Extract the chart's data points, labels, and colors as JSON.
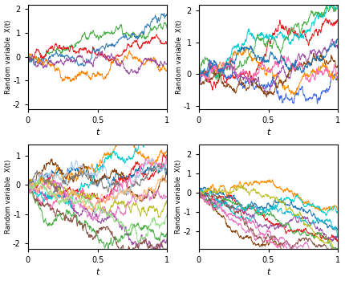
{
  "n_steps": 500,
  "subplots": [
    {
      "n_paths": 5,
      "seed": 1,
      "drift": 0.0,
      "ylim": [
        -2.2,
        2.2
      ],
      "yticks": [
        -2,
        -1,
        0,
        1,
        2
      ]
    },
    {
      "n_paths": 9,
      "seed": 3,
      "drift": 1.5,
      "ylim": [
        -1.1,
        2.2
      ],
      "yticks": [
        -1,
        0,
        1,
        2
      ]
    },
    {
      "n_paths": 15,
      "seed": 5,
      "drift": 0.0,
      "ylim": [
        -2.2,
        1.4
      ],
      "yticks": [
        -2,
        -1,
        0,
        1
      ]
    },
    {
      "n_paths": 12,
      "seed": 8,
      "drift": -2.5,
      "ylim": [
        -2.9,
        2.5
      ],
      "yticks": [
        -2,
        -1,
        0,
        1,
        2
      ]
    }
  ],
  "colors_per_subplot": [
    [
      "#4daf4a",
      "#e41a1c",
      "#377eb8",
      "#ff7f00",
      "#984ea3"
    ],
    [
      "#e41a1c",
      "#00ced1",
      "#4169e1",
      "#ff8c00",
      "#4daf4a",
      "#984ea3",
      "#8b4513",
      "#ff69b4",
      "#1f77b4"
    ],
    [
      "#1f77b4",
      "#e41a1c",
      "#ff8c00",
      "#4daf4a",
      "#984ea3",
      "#8b4513",
      "#ff69b4",
      "#00ced1",
      "#bcbd22",
      "#8c564b",
      "#e377c2",
      "#7f7f7f",
      "#aec7e8",
      "#ffbb78",
      "#98df8a"
    ],
    [
      "#e41a1c",
      "#ff8c00",
      "#00ced1",
      "#1f77b4",
      "#984ea3",
      "#4daf4a",
      "#8b4513",
      "#ff69b4",
      "#17becf",
      "#bcbd22",
      "#8c564b",
      "#e377c2"
    ]
  ],
  "xlabel": "t",
  "ylabel": "Random variable  X(t)",
  "xticks": [
    0,
    0.5,
    1
  ],
  "xlim": [
    0,
    1
  ],
  "linewidth": 0.7,
  "figsize": [
    4.3,
    3.5
  ],
  "dpi": 100
}
